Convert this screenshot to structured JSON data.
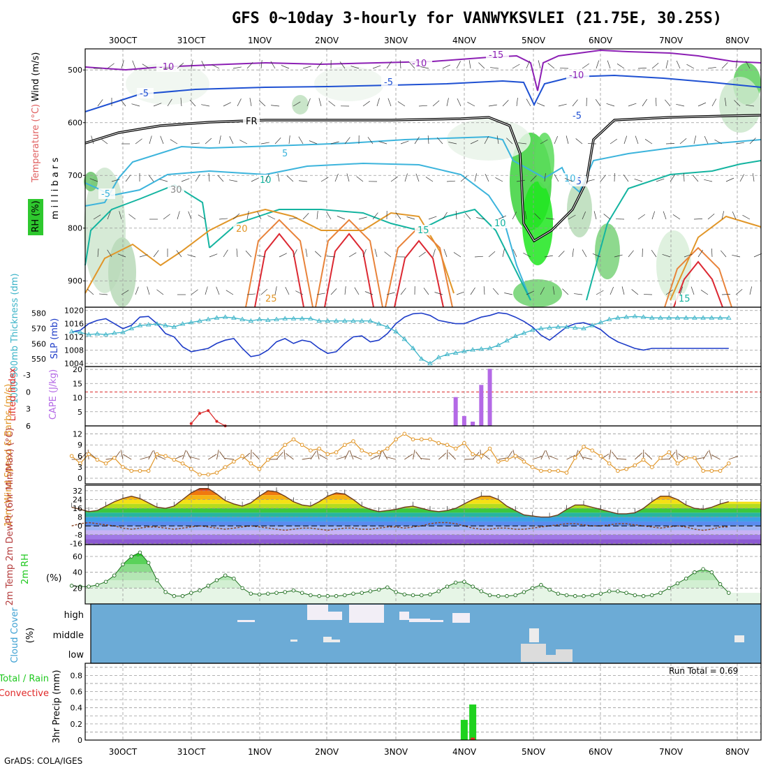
{
  "title": "GFS 0~10day 3-hourly for VANWYKSVLEI (21.75E, 30.25S)",
  "footer": "GrADS: COLA/IGES",
  "run_total": "Run Total = 0.69",
  "colors": {
    "purple": "#8c1fb4",
    "blue": "#1e50d2",
    "cyan": "#3cb4dc",
    "teal": "#14b4a0",
    "orange": "#e19628",
    "red": "#dc2832",
    "slp": "#1e3cc8",
    "thick": "#3cb4c8",
    "green": "#1ed21e",
    "cloud_bg": "#6cabd6",
    "cape": "#b469e6",
    "li": "#dc2828",
    "wind": "#e19628",
    "barb": "#7a5030"
  },
  "chart_data": {
    "x_dates": [
      "30OCT",
      "31OCT",
      "1NOV",
      "2NOV",
      "3NOV",
      "4NOV",
      "5NOV",
      "6NOV",
      "7NOV",
      "8NOV"
    ],
    "panels": [
      {
        "name": "upper_air",
        "type": "heatmap",
        "axis_label_y": "m i l l i b a r s",
        "side_labels": [
          "Wind (m/s)",
          "Temperature (°C)",
          "RH (%)"
        ],
        "y_ticks": [
          "500",
          "600",
          "700",
          "800",
          "900"
        ],
        "ylim": [
          460,
          950
        ],
        "contour_labels": [
          "-10",
          "-10",
          "-15",
          "-10",
          "-5",
          "-5",
          "-5",
          "FR",
          "5",
          "10",
          "-5",
          "20",
          "15",
          "10",
          "25",
          "15",
          "-5",
          "10",
          "30"
        ]
      },
      {
        "name": "slp_thickness",
        "type": "line",
        "left_label": "1000-500mb Thickness (dm)",
        "right_label": "SLP (mb)",
        "left_ticks": [
          "580",
          "570",
          "560",
          "550"
        ],
        "right_ticks": [
          "1020",
          "1016",
          "1012",
          "1008",
          "1004"
        ],
        "slp_ylim": [
          1003,
          1021
        ],
        "slp": [
          1013.5,
          1014,
          1016,
          1017,
          1017.5,
          1016,
          1014.5,
          1015.5,
          1018,
          1018.2,
          1016,
          1013,
          1012,
          1009,
          1007.5,
          1008,
          1008.5,
          1010,
          1011,
          1011.5,
          1008.5,
          1006,
          1006.5,
          1008,
          1010.5,
          1011.5,
          1010,
          1011,
          1010.5,
          1008.5,
          1007,
          1007.5,
          1010,
          1012,
          1012.3,
          1010.5,
          1011,
          1013,
          1016,
          1018,
          1019,
          1019.2,
          1018.5,
          1017,
          1016.5,
          1016,
          1016,
          1017,
          1018,
          1018.5,
          1019.3,
          1019,
          1018,
          1016.7,
          1015,
          1012.5,
          1011,
          1013,
          1015,
          1016,
          1016.3,
          1015.5,
          1014.2,
          1012,
          1010.5,
          1009.5,
          1008.5,
          1008,
          1008.5,
          1008.5,
          1008.5,
          1008.5,
          1008.5,
          1008.5,
          1008.5,
          1008.5,
          1008.5,
          1008.5
        ],
        "thickness": [
          568,
          567.5,
          566,
          566.5,
          566,
          567,
          567.5,
          570,
          572,
          572.5,
          573,
          572,
          571,
          573,
          574,
          575,
          576,
          577,
          577.5,
          577,
          576,
          575,
          576,
          575.5,
          576,
          576.5,
          576.5,
          576.5,
          576.5,
          575,
          575,
          575,
          575,
          575,
          575,
          575,
          573,
          571,
          568,
          563,
          557,
          550,
          547,
          551,
          553,
          554,
          555,
          556,
          556.5,
          557,
          559,
          562,
          565,
          567,
          569,
          570,
          570.5,
          571,
          571,
          570.5,
          570,
          572,
          574,
          576,
          577,
          577.5,
          578,
          577.5,
          577,
          577,
          577,
          577,
          577,
          577,
          577,
          577,
          577,
          577
        ]
      },
      {
        "name": "cape_li",
        "type": "bar",
        "left_label": "Lifted Index",
        "right_label": "CAPE (J/kg)",
        "left_ticks": [
          "-3",
          "0",
          "3",
          "6"
        ],
        "right_ticks": [
          "20",
          "15",
          "10",
          "5"
        ],
        "cape_ylim": [
          0,
          21
        ],
        "cape_bars": [
          {
            "x": 45,
            "v": 10.2
          },
          {
            "x": 46,
            "v": 3.5
          },
          {
            "x": 47,
            "v": 1.5
          },
          {
            "x": 48,
            "v": 14.5
          },
          {
            "x": 49,
            "v": 20.2
          }
        ],
        "li_points": [
          {
            "x": 14,
            "v": 5.6
          },
          {
            "x": 15,
            "v": 3.8
          },
          {
            "x": 16,
            "v": 3.3
          },
          {
            "x": 17,
            "v": 5.2
          },
          {
            "x": 18,
            "v": 6
          }
        ]
      },
      {
        "name": "wind10m",
        "type": "line",
        "left_label": "10m Wind Speed & Barbs (m/s)",
        "y_ticks": [
          "12",
          "9",
          "6",
          "3",
          "0"
        ],
        "ylim": [
          0,
          13
        ],
        "speed": [
          6,
          4,
          6.5,
          5,
          4,
          5.5,
          3,
          2,
          2,
          2,
          6.5,
          6,
          5,
          4,
          2.5,
          1,
          1,
          1.5,
          3,
          4.5,
          6,
          4,
          2.5,
          5,
          6.5,
          9,
          10.5,
          9,
          7.5,
          8,
          6.5,
          7,
          9,
          10,
          7.5,
          6.5,
          7,
          8,
          10.5,
          12,
          10.5,
          10.5,
          10.5,
          9.5,
          9,
          8,
          9.5,
          6.5,
          6,
          8,
          4.5,
          5,
          6,
          4.5,
          3,
          2,
          2,
          2,
          1.5,
          5.5,
          8.5,
          7.5,
          6,
          4,
          2,
          2.5,
          3.5,
          5,
          3,
          5.5,
          7,
          4,
          5.5,
          5.5,
          2,
          2,
          2,
          4
        ]
      },
      {
        "name": "temp2m",
        "type": "area",
        "left_label": "2m Temp 2m DewPt (6hr Min/Max) (°C)",
        "y_ticks": [
          "32",
          "24",
          "16",
          "8",
          "0",
          "-8",
          "-16"
        ],
        "ylim": [
          -17,
          37
        ],
        "temp": [
          17,
          15,
          13,
          14,
          18,
          22,
          25,
          27,
          25,
          21,
          17,
          16,
          18,
          24,
          30,
          34,
          34,
          29,
          23,
          20,
          18,
          21,
          27,
          32,
          31,
          27,
          22,
          19,
          18,
          22,
          27,
          30,
          29,
          24,
          18,
          15,
          13,
          14,
          15,
          17,
          18,
          16,
          14,
          13,
          14,
          16,
          20,
          24,
          27,
          27,
          24,
          18,
          14,
          10,
          9,
          8,
          8,
          10,
          15,
          19,
          19,
          17,
          15,
          13,
          11,
          11,
          12,
          16,
          22,
          27,
          27,
          24,
          19,
          16,
          15,
          17,
          20,
          22
        ],
        "dew": [
          0,
          2,
          3,
          2,
          1,
          0,
          -2,
          -3,
          -2,
          -1,
          -1,
          -2,
          -3,
          -2,
          -1,
          0,
          -1,
          -2,
          -3,
          -2,
          -1,
          0,
          -1,
          -2,
          -3,
          -4,
          -3,
          -2,
          -2,
          -3,
          -4,
          -3,
          -2,
          -2,
          -3,
          -3,
          -2,
          -1,
          -1,
          -2,
          -1,
          0,
          2,
          3,
          3,
          2,
          0,
          -2,
          -3,
          -3,
          -2,
          -2,
          -3,
          -3,
          -2,
          -1,
          0,
          1,
          2,
          2,
          1,
          0,
          0,
          1,
          2,
          2,
          1,
          0,
          -1,
          -2,
          -1,
          0,
          -1,
          -3,
          -4,
          -3,
          -1,
          -1
        ]
      },
      {
        "name": "rh2m",
        "type": "area",
        "left_label": "2m RH (%)",
        "y_ticks": [
          "60",
          "40",
          "20"
        ],
        "ylim": [
          0,
          75
        ],
        "rh": [
          23,
          22,
          22,
          24,
          28,
          36,
          50,
          60,
          65,
          52,
          30,
          15,
          10,
          10,
          14,
          17,
          23,
          30,
          36,
          32,
          20,
          13,
          12,
          13,
          14,
          15,
          17,
          14,
          11,
          10,
          10,
          10,
          11,
          13,
          14,
          16,
          18,
          21,
          15,
          12,
          11,
          11,
          12,
          16,
          22,
          27,
          28,
          22,
          16,
          11,
          10,
          10,
          11,
          15,
          20,
          24,
          18,
          13,
          11,
          10,
          10,
          11,
          13,
          16,
          16,
          14,
          11,
          10,
          11,
          14,
          20,
          26,
          32,
          40,
          44,
          40,
          25,
          14
        ]
      },
      {
        "name": "cloud_cover",
        "type": "bar",
        "left_label": "Cloud Cover (%)",
        "levels": [
          "high",
          "middle",
          "low"
        ]
      },
      {
        "name": "precip",
        "type": "bar",
        "left_label": "3hr Precip (mm)",
        "side_labels": [
          "Total / Rain",
          "Convective"
        ],
        "y_ticks": [
          "0.8",
          "0.6",
          "0.4",
          "0.2",
          "0"
        ],
        "ylim": [
          0,
          0.95
        ],
        "bars": [
          {
            "x": 46,
            "total": 0.25,
            "conv": 0
          },
          {
            "x": 47,
            "total": 0.44,
            "conv": 0.03
          }
        ]
      }
    ]
  }
}
